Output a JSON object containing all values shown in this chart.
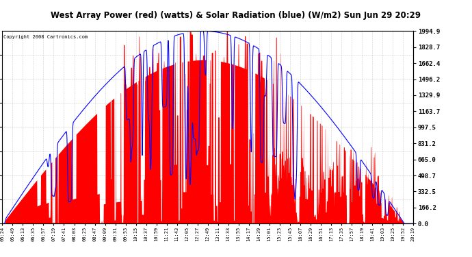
{
  "title": "West Array Power (red) (watts) & Solar Radiation (blue) (W/m2) Sun Jun 29 20:29",
  "copyright": "Copyright 2008 Cartronics.com",
  "ylabel_right_ticks": [
    0.0,
    166.2,
    332.5,
    498.7,
    665.0,
    831.2,
    997.5,
    1163.7,
    1329.9,
    1496.2,
    1662.4,
    1828.7,
    1994.9
  ],
  "ymax": 1994.9,
  "ymin": 0.0,
  "bg_color": "#ffffff",
  "grid_color": "#aaaaaa",
  "fill_color": "#ff0000",
  "line_color": "#0000ff",
  "x_labels": [
    "05:24",
    "05:49",
    "06:13",
    "06:35",
    "06:57",
    "07:19",
    "07:41",
    "08:03",
    "08:25",
    "08:47",
    "09:09",
    "09:31",
    "09:53",
    "10:15",
    "10:37",
    "10:59",
    "11:21",
    "11:43",
    "12:05",
    "12:27",
    "12:49",
    "13:11",
    "13:33",
    "13:55",
    "14:17",
    "14:39",
    "15:01",
    "15:23",
    "15:45",
    "16:07",
    "16:29",
    "16:51",
    "17:13",
    "17:35",
    "17:57",
    "18:19",
    "18:41",
    "19:03",
    "19:25",
    "19:52",
    "20:19"
  ]
}
